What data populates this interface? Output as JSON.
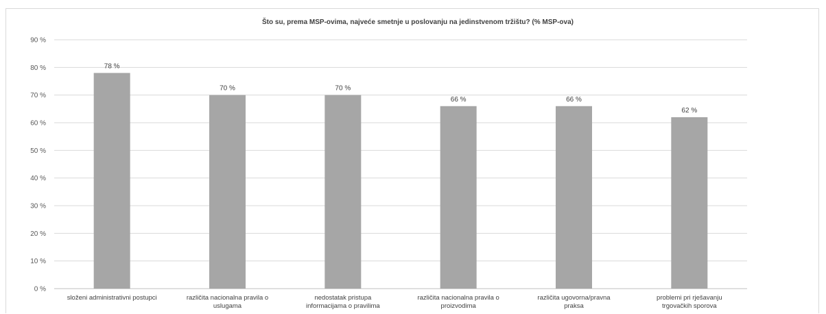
{
  "chart_data": {
    "type": "bar",
    "title": "Što su, prema MSP-ovima, najveće smetnje u poslovanju na jedinstvenom tržištu? (% MSP-ova)",
    "categories": [
      [
        "složeni administrativni postupci"
      ],
      [
        "različita nacionalna pravila o",
        "uslugama"
      ],
      [
        "nedostatak pristupa",
        "informacijama o pravilima"
      ],
      [
        "različita nacionalna pravila o",
        "proizvodima"
      ],
      [
        "različita ugovorna/pravna",
        "praksa"
      ],
      [
        "problemi pri rješavanju",
        "trgovačkih sporova"
      ]
    ],
    "values": [
      78,
      70,
      70,
      66,
      66,
      62
    ],
    "data_labels": [
      "78 %",
      "70 %",
      "70 %",
      "66 %",
      "66 %",
      "62 %"
    ],
    "ylim": [
      0,
      90
    ],
    "yticks": [
      0,
      10,
      20,
      30,
      40,
      50,
      60,
      70,
      80,
      90
    ],
    "ytick_labels": [
      "0 %",
      "10 %",
      "20 %",
      "30 %",
      "40 %",
      "50 %",
      "60 %",
      "70 %",
      "80 %",
      "90 %"
    ],
    "grid": true,
    "bar_color": "#a6a6a6"
  }
}
